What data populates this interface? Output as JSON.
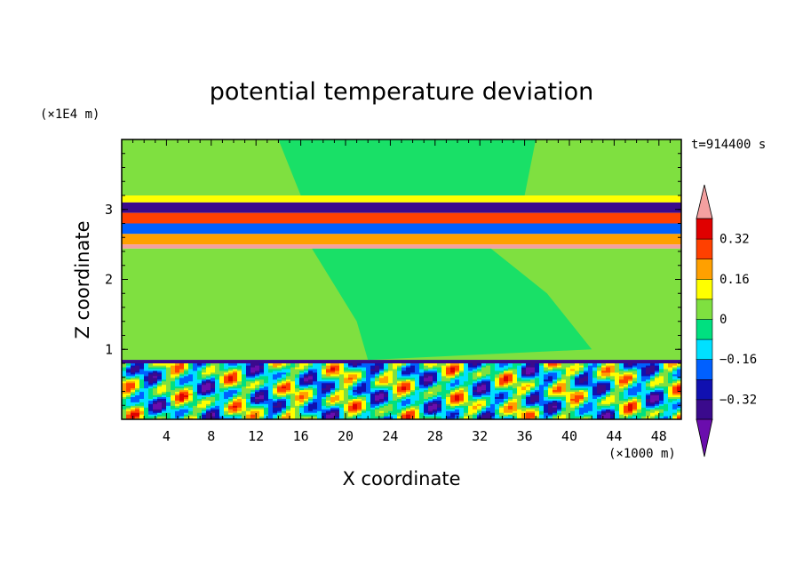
{
  "chart_data": {
    "type": "heatmap",
    "title": "potential temperature deviation",
    "xlabel": "X coordinate",
    "ylabel": "Z coordinate",
    "x_unit": "(×1000 m)",
    "y_unit": "(×1E4 m)",
    "time_label": "t=914400 s",
    "xlim": [
      0,
      50
    ],
    "ylim": [
      0,
      4
    ],
    "x_ticks": [
      4,
      8,
      12,
      16,
      20,
      24,
      28,
      32,
      36,
      40,
      44,
      48
    ],
    "y_ticks": [
      1,
      2,
      3
    ],
    "colorbar": {
      "levels": [
        -0.4,
        -0.32,
        -0.24,
        -0.16,
        -0.08,
        0,
        0.08,
        0.16,
        0.24,
        0.32,
        0.4
      ],
      "tick_labels": [
        "0.32",
        "0.16",
        "0",
        "−0.16",
        "−0.32"
      ],
      "tick_values": [
        0.32,
        0.16,
        0,
        -0.16,
        -0.32
      ],
      "colors": [
        "#6a0dad",
        "#3a0a8c",
        "#1010b0",
        "#0060ff",
        "#00e0ff",
        "#00e080",
        "#7fe040",
        "#ffff00",
        "#ffa000",
        "#ff4000",
        "#e00000",
        "#f4a0a0"
      ],
      "extend": "both"
    },
    "field_bands": [
      {
        "z_range": [
          3.2,
          4.0
        ],
        "value": 0.02
      },
      {
        "z_range": [
          3.1,
          3.2
        ],
        "value": 0.12
      },
      {
        "z_range": [
          2.95,
          3.1
        ],
        "value": -0.35
      },
      {
        "z_range": [
          2.8,
          2.95
        ],
        "value": 0.3
      },
      {
        "z_range": [
          2.65,
          2.8
        ],
        "value": -0.22
      },
      {
        "z_range": [
          2.5,
          2.65
        ],
        "value": 0.2
      },
      {
        "z_range": [
          2.44,
          2.5
        ],
        "value": 0.42
      },
      {
        "z_range": [
          0.85,
          2.44
        ],
        "value": 0.02
      },
      {
        "z_range": [
          0.8,
          0.85
        ],
        "value": -0.38
      },
      {
        "z_range": [
          0.0,
          0.8
        ],
        "value": "turbulent"
      }
    ]
  }
}
